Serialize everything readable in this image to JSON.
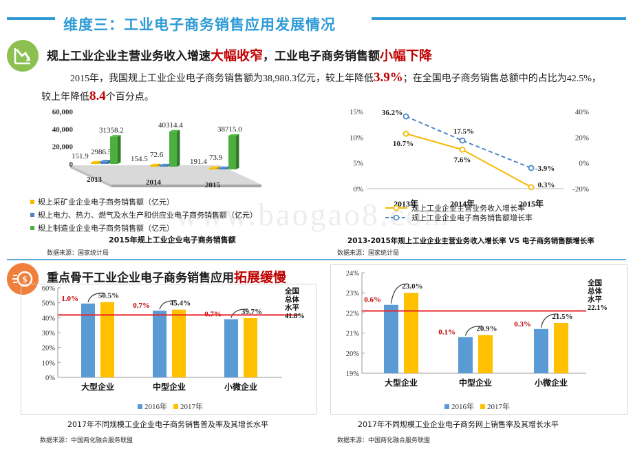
{
  "page": {
    "title": "维度三：工业电子商务销售应用发展情况",
    "section1": {
      "head_pre": "规上工业企业主营业务收入增速",
      "head_hl1": "大幅收窄",
      "head_mid": "，工业电子商务销售额",
      "head_hl2": "小幅下降",
      "para_a": "2015年，我国规上工业企业电子商务销售额为38,980.3亿元，较上年降低",
      "para_hl1": "3.9%",
      "para_b": "；在全国电子商务销售总额中的占比为42.5%，较上年降低",
      "para_hl2": "8.4",
      "para_c": "个百分点。"
    },
    "section2": {
      "head_pre": "重点骨干工业企业电子商务销售应用",
      "head_hl": "拓展缓慢"
    },
    "watermark": "www.baogao8.com",
    "colors": {
      "accent": "#2e9bd6",
      "highlight": "#c00000",
      "icon1": "#8cc152",
      "icon2": "#f07f3c"
    },
    "icons": {
      "section1": "trend-down-icon",
      "section2": "coin-icon"
    }
  },
  "chart_data": [
    {
      "type": "bar",
      "categories": [
        "2013",
        "2014",
        "2015"
      ],
      "series": [
        {
          "name": "规上采矿业企业电子商务销售额（亿元）",
          "values": [
            151.9,
            154.5,
            191.4
          ],
          "color": "#f5b800"
        },
        {
          "name": "规上电力、热力、燃气及水生产和供应业电子商务销售额（亿元）",
          "values": [
            2986.5,
            72.6,
            73.9
          ],
          "color": "#4a86c5"
        },
        {
          "name": "规上制造业企业电子商务销售额（亿元）",
          "values": [
            31358.2,
            40314.4,
            38715.0
          ],
          "color": "#4caf3f"
        }
      ],
      "data_labels": [
        [
          "151.9",
          "2986.5",
          "31358.2"
        ],
        [
          "154.5",
          "72.6",
          "40314.4"
        ],
        [
          "191.4",
          "73.9",
          "38715.0"
        ]
      ],
      "yticks": [
        "60,000",
        "40,000",
        "20,000",
        "0"
      ],
      "ylim": [
        0,
        60000
      ],
      "title": "2015年规上工业企业电子商务销售额",
      "source": "数据来源：国家统计局"
    },
    {
      "type": "line",
      "categories": [
        "2013年",
        "2014年",
        "2015年"
      ],
      "series": [
        {
          "name": "规上工业企业主营业务收入增长率",
          "values": [
            10.7,
            7.6,
            0.3
          ],
          "labels": [
            "10.7%",
            "7.6%",
            "0.3%"
          ],
          "axis": "left",
          "color": "#f5b800",
          "dashed": false
        },
        {
          "name": "规上工业企业电子商务销售额增长率",
          "values": [
            36.2,
            17.5,
            -3.9
          ],
          "labels": [
            "36.2%",
            "17.5%",
            "-3.9%"
          ],
          "axis": "right",
          "color": "#4a86c5",
          "dashed": true
        }
      ],
      "yticks_left": [
        "15%",
        "10%",
        "5%",
        "0%"
      ],
      "ylim_left": [
        0,
        15
      ],
      "yticks_right": [
        "40%",
        "20%",
        "0%",
        "-20%"
      ],
      "ylim_right": [
        -20,
        40
      ],
      "title": "2013-2015年规上工业企业主营业务收入增长率 VS 电子商务销售额增长率",
      "source": "数据来源：国家统计局"
    },
    {
      "type": "bar",
      "categories": [
        "大型企业",
        "中型企业",
        "小微企业"
      ],
      "series": [
        {
          "name": "2016年",
          "values": [
            49.5,
            44.7,
            39.0
          ],
          "color": "#5b9bd5"
        },
        {
          "name": "2017年",
          "values": [
            50.5,
            45.4,
            39.7
          ],
          "color": "#ffc000"
        }
      ],
      "value_labels": [
        "50.5%",
        "45.4%",
        "39.7%"
      ],
      "growth_labels": [
        "1.0%",
        "0.7%",
        "0.7%"
      ],
      "reference": {
        "label_lines": [
          "全国",
          "总体",
          "水平"
        ],
        "value": 41.8,
        "value_label": "41.8%"
      },
      "yticks": [
        "60%",
        "50%",
        "40%",
        "30%",
        "20%",
        "10%",
        "0%"
      ],
      "ylim": [
        0,
        60
      ],
      "title": "2017年不同规模工业企业电子商务销售普及率及其增长水平",
      "source": "数据来源：中国两化融合服务联盟"
    },
    {
      "type": "bar",
      "categories": [
        "大型企业",
        "中型企业",
        "小微企业"
      ],
      "series": [
        {
          "name": "2016年",
          "values": [
            22.4,
            20.8,
            21.2
          ],
          "color": "#5b9bd5"
        },
        {
          "name": "2017年",
          "values": [
            23.0,
            20.9,
            21.5
          ],
          "color": "#ffc000"
        }
      ],
      "value_labels": [
        "23.0%",
        "20.9%",
        "21.5%"
      ],
      "growth_labels": [
        "0.6%",
        "0.1%",
        "0.3%"
      ],
      "reference": {
        "label_lines": [
          "全国",
          "总体",
          "水平"
        ],
        "value": 22.1,
        "value_label": "22.1%"
      },
      "yticks": [
        "24%",
        "23%",
        "22%",
        "21%",
        "20%",
        "19%"
      ],
      "ylim": [
        19,
        24
      ],
      "title": "2017年不同规模工业企业电子商务网上销售率及其增长水平",
      "source": "数据来源：中国两化融合服务联盟"
    }
  ]
}
